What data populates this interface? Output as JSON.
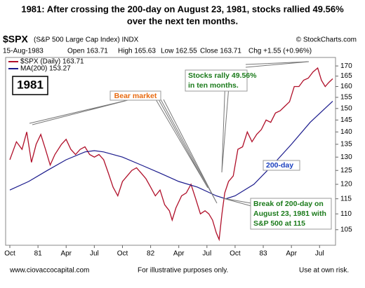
{
  "chart_data": {
    "type": "line",
    "title_lines": [
      "1981:  After crossing the 200-day on August 23, 1981,  stocks rallied  49.56%",
      "over the next  ten months."
    ],
    "symbol": "$SPX",
    "symbol_name": "(S&P 500 Large Cap Index) INDX",
    "source": "© StockCharts.com",
    "quote": [
      "15-Aug-1983",
      "Open 163.71",
      "High 165.63",
      "Low 162.55",
      "Close 163.71",
      "Chg +1.55 (+0.96%)"
    ],
    "log_scale": true,
    "xlim": [
      -0.45,
      34.7
    ],
    "xticks": [
      {
        "value": 0,
        "label": "Oct"
      },
      {
        "value": 3,
        "label": "81"
      },
      {
        "value": 6,
        "label": "Apr"
      },
      {
        "value": 9,
        "label": "Jul"
      },
      {
        "value": 12,
        "label": "Oct"
      },
      {
        "value": 15,
        "label": "82"
      },
      {
        "value": 18,
        "label": "Apr"
      },
      {
        "value": 21,
        "label": "Jul"
      },
      {
        "value": 24,
        "label": "Oct"
      },
      {
        "value": 27,
        "label": "83"
      },
      {
        "value": 30,
        "label": "Apr"
      },
      {
        "value": 33,
        "label": "Jul"
      }
    ],
    "ylim": [
      100.3,
      174.3
    ],
    "yticks": [
      105,
      110,
      115,
      120,
      125,
      130,
      135,
      140,
      145,
      150,
      155,
      160,
      165,
      170
    ],
    "series": [
      {
        "name": "$SPX (Daily) 163.71",
        "color": "#b0102a",
        "x": [
          0,
          0.7,
          1.3,
          1.8,
          2.3,
          2.8,
          3.3,
          3.8,
          4.3,
          4.8,
          5.5,
          6,
          6.5,
          7,
          7.5,
          8,
          8.5,
          9,
          9.5,
          10,
          10.5,
          11,
          11.5,
          12,
          12.5,
          13,
          13.5,
          14,
          14.5,
          15,
          15.5,
          16,
          16.5,
          17,
          17.3,
          17.7,
          18.3,
          18.8,
          19.3,
          19.8,
          20.3,
          20.8,
          21.2,
          21.6,
          22,
          22.3,
          22.6,
          22.9,
          23.3,
          23.8,
          24.3,
          24.8,
          25.3,
          25.8,
          26.3,
          26.8,
          27.3,
          27.8,
          28.3,
          28.8,
          29.3,
          29.8,
          30.3,
          30.8,
          31.3,
          31.8,
          32.3,
          32.8,
          33.2,
          33.6,
          34,
          34.4
        ],
        "values": [
          129,
          136,
          133,
          140,
          128,
          135,
          139,
          133,
          127,
          131,
          135,
          137,
          133,
          131,
          133,
          134,
          131,
          130,
          131,
          129,
          124,
          119,
          116,
          121,
          123,
          125,
          126,
          124,
          122,
          119,
          116,
          118,
          113,
          111,
          108,
          112,
          116,
          117,
          120,
          115,
          110,
          111,
          110,
          108,
          104,
          102,
          110,
          117,
          121,
          123,
          133,
          134,
          140,
          136,
          139,
          141,
          145,
          144,
          148,
          149,
          151,
          153,
          160,
          160,
          163,
          164,
          167,
          169,
          163,
          160,
          162,
          163.71
        ]
      },
      {
        "name": "MA(200) 153.27",
        "color": "#1a1a8c",
        "x": [
          0,
          2,
          4,
          6,
          8,
          9,
          10,
          12,
          14,
          16,
          18,
          20,
          22,
          23,
          24,
          26,
          28,
          30,
          32,
          34.4
        ],
        "values": [
          118,
          121,
          125,
          129,
          132,
          132.5,
          132,
          130,
          127,
          124,
          121,
          119,
          116,
          115,
          116,
          120,
          127,
          135,
          144,
          153.27
        ]
      }
    ],
    "annotations": {
      "year": "1981",
      "bear": "Bear market",
      "rally": [
        "Stocks rally 49.56%",
        "in ten months."
      ],
      "ma_label": "200-day",
      "break": [
        "Break of 200-day on",
        "August 23, 1981 with",
        "S&P 500 at 115"
      ]
    },
    "footer": [
      "www.ciovaccocapital.com",
      "For illustrative purposes only.",
      "Use at own risk."
    ]
  }
}
